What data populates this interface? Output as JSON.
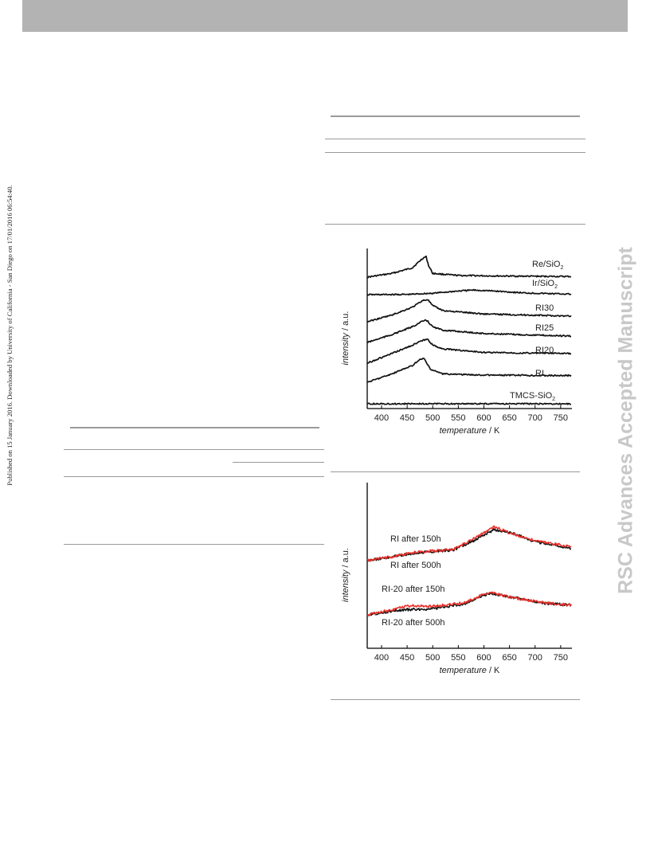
{
  "side_note": "Published on 15 January 2016. Downloaded by University of California - San Diego on 17/01/2016 06:54:40.",
  "watermark": "RSC Advances Accepted Manuscript",
  "chart_data": [
    {
      "type": "line",
      "xlabel": "temperature / K",
      "ylabel": "intensity / a.u.",
      "x_ticks": [
        "400",
        "450",
        "500",
        "550",
        "600",
        "650",
        "700",
        "750"
      ],
      "xlim": [
        372,
        772
      ],
      "y_ticks": [],
      "grid": false,
      "series": [
        {
          "name": "Re/SiO2",
          "label": "Re/SiO",
          "sub": "2",
          "color": "#111111",
          "x": [
            372,
            420,
            460,
            480,
            487,
            492,
            500,
            550,
            650,
            772
          ],
          "y": [
            0.0,
            0.18,
            0.45,
            0.9,
            1.0,
            0.55,
            0.18,
            0.08,
            0.05,
            0.03
          ]
        },
        {
          "name": "Ir/SiO2",
          "label": "Ir/SiO",
          "sub": "2",
          "color": "#111111",
          "x": [
            372,
            450,
            500,
            550,
            580,
            620,
            680,
            772
          ],
          "y": [
            0.0,
            0.02,
            0.15,
            0.38,
            0.48,
            0.38,
            0.18,
            0.05
          ]
        },
        {
          "name": "RI30",
          "label": "RI30",
          "sub": "",
          "color": "#111111",
          "x": [
            372,
            420,
            460,
            480,
            490,
            500,
            520,
            600,
            772
          ],
          "y": [
            0.0,
            0.3,
            0.65,
            0.95,
            1.0,
            0.72,
            0.5,
            0.35,
            0.25
          ]
        },
        {
          "name": "RI25",
          "label": "RI25",
          "sub": "",
          "color": "#111111",
          "x": [
            372,
            420,
            460,
            480,
            488,
            500,
            520,
            600,
            772
          ],
          "y": [
            0.0,
            0.35,
            0.7,
            0.95,
            1.0,
            0.7,
            0.55,
            0.4,
            0.28
          ]
        },
        {
          "name": "RI20",
          "label": "RI20",
          "sub": "",
          "color": "#111111",
          "x": [
            372,
            420,
            460,
            480,
            490,
            500,
            520,
            600,
            772
          ],
          "y": [
            0.0,
            0.4,
            0.75,
            0.95,
            1.0,
            0.75,
            0.6,
            0.45,
            0.4
          ]
        },
        {
          "name": "RI",
          "label": "RI",
          "sub": "",
          "color": "#111111",
          "x": [
            372,
            420,
            460,
            475,
            483,
            495,
            520,
            600,
            772
          ],
          "y": [
            0.0,
            0.35,
            0.7,
            0.95,
            1.0,
            0.55,
            0.35,
            0.3,
            0.28
          ]
        },
        {
          "name": "TMCS-SiO2",
          "label": "TMCS-SiO",
          "sub": "2",
          "color": "#111111",
          "x": [
            372,
            772
          ],
          "y": [
            0.0,
            0.0
          ]
        }
      ]
    },
    {
      "type": "line",
      "xlabel": "temperature / K",
      "ylabel": "intensity / a.u.",
      "x_ticks": [
        "400",
        "450",
        "500",
        "550",
        "600",
        "650",
        "700",
        "750"
      ],
      "xlim": [
        372,
        772
      ],
      "y_ticks": [],
      "grid": false,
      "series": [
        {
          "name": "RI after 150h",
          "label": "RI after 150h",
          "color": "#e8302a",
          "x": [
            372,
            420,
            470,
            540,
            580,
            620,
            650,
            700,
            772
          ],
          "y": [
            0.0,
            0.1,
            0.22,
            0.28,
            0.55,
            0.85,
            0.7,
            0.5,
            0.35
          ]
        },
        {
          "name": "RI after 500h",
          "label": "RI after 500h",
          "color": "#111111",
          "x": [
            372,
            420,
            470,
            540,
            580,
            620,
            650,
            700,
            772
          ],
          "y": [
            0.0,
            0.1,
            0.2,
            0.27,
            0.5,
            0.78,
            0.72,
            0.48,
            0.3
          ]
        },
        {
          "name": "RI-20 after 150h",
          "label": "RI-20 after 150h",
          "color": "#e8302a",
          "x": [
            372,
            420,
            450,
            500,
            560,
            610,
            660,
            720,
            772
          ],
          "y": [
            0.0,
            0.22,
            0.38,
            0.35,
            0.5,
            0.95,
            0.7,
            0.5,
            0.4
          ]
        },
        {
          "name": "RI-20 after 500h",
          "label": "RI-20 after 500h",
          "color": "#111111",
          "x": [
            372,
            420,
            450,
            500,
            560,
            610,
            660,
            720,
            772
          ],
          "y": [
            0.0,
            0.15,
            0.22,
            0.25,
            0.45,
            0.9,
            0.72,
            0.48,
            0.4
          ]
        }
      ]
    }
  ]
}
